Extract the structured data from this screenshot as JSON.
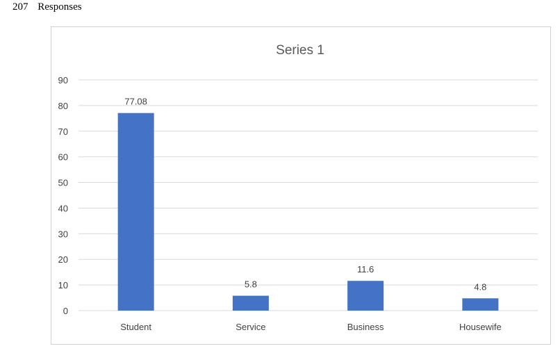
{
  "header": {
    "count": "207",
    "label": "Responses"
  },
  "colors": {
    "bar": "#4472C4",
    "grid": "#d9d9d9",
    "text": "#404040"
  },
  "chart_data": {
    "type": "bar",
    "title": "Series 1",
    "categories": [
      "Student",
      "Service",
      "Business",
      "Housewife"
    ],
    "values": [
      77.08,
      5.8,
      11.6,
      4.8
    ],
    "data_labels": [
      "77.08",
      "5.8",
      "11.6",
      "4.8"
    ],
    "y_ticks": [
      "90",
      "80",
      "70",
      "60",
      "50",
      "40",
      "30",
      "20",
      "10",
      "0"
    ],
    "ylim": [
      0,
      90
    ],
    "grid": true,
    "legend": "none"
  }
}
